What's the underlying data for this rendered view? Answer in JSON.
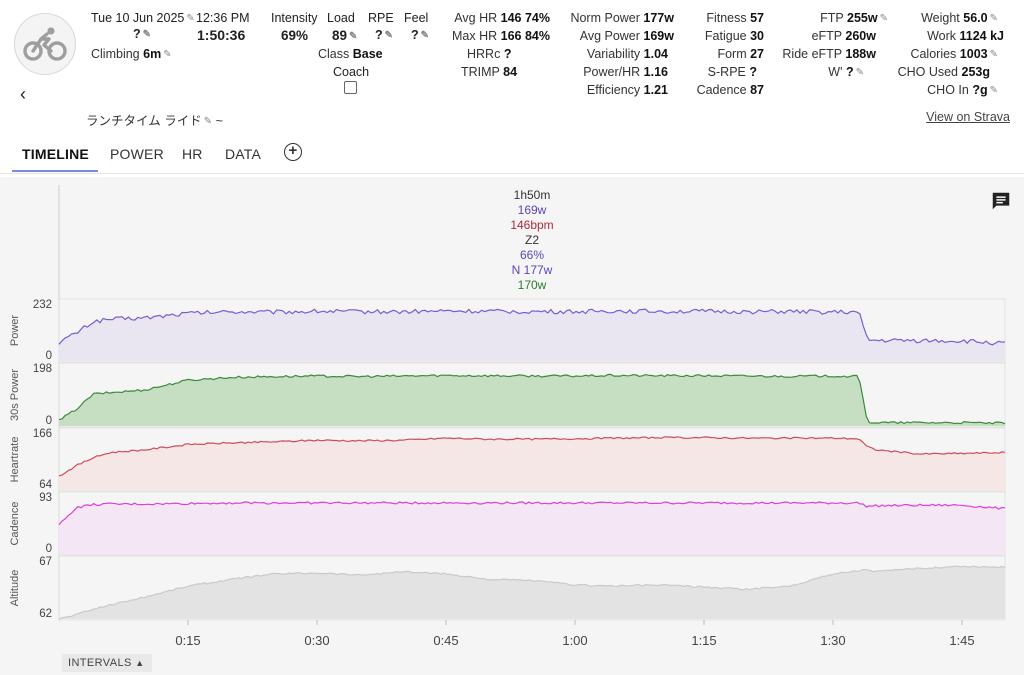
{
  "header": {
    "date": "Tue 10 Jun 2025",
    "time": "12:36 PM",
    "unknown_q": "?",
    "duration": "1:50:36",
    "climbing_label": "Climbing",
    "climbing_value": "6m",
    "title": "ランチタイム ライド",
    "title_suffix": "~",
    "strava_link": "View on Strava"
  },
  "metrics_a": {
    "intensity_label": "Intensity",
    "intensity_value": "69%",
    "load_label": "Load",
    "load_value": "89",
    "rpe_label": "RPE",
    "rpe_value": "?",
    "feel_label": "Feel",
    "feel_value": "?",
    "class_label": "Class",
    "class_value": "Base",
    "coach_label": "Coach"
  },
  "metrics_b": {
    "avg_hr_label": "Avg HR",
    "avg_hr_value": "146",
    "avg_hr_pct": "74%",
    "max_hr_label": "Max HR",
    "max_hr_value": "166",
    "max_hr_pct": "84%",
    "hrrc_label": "HRRc",
    "hrrc_value": "?",
    "trimp_label": "TRIMP",
    "trimp_value": "84"
  },
  "metrics_c": {
    "norm_power_label": "Norm Power",
    "norm_power_value": "177w",
    "avg_power_label": "Avg Power",
    "avg_power_value": "169w",
    "variability_label": "Variability",
    "variability_value": "1.04",
    "power_hr_label": "Power/HR",
    "power_hr_value": "1.16",
    "efficiency_label": "Efficiency",
    "efficiency_value": "1.21"
  },
  "metrics_d": {
    "fitness_label": "Fitness",
    "fitness_value": "57",
    "fatigue_label": "Fatigue",
    "fatigue_value": "30",
    "form_label": "Form",
    "form_value": "27",
    "srpe_label": "S-RPE",
    "srpe_value": "?",
    "cadence_label": "Cadence",
    "cadence_value": "87"
  },
  "metrics_e": {
    "ftp_label": "FTP",
    "ftp_value": "255w",
    "eftp_label": "eFTP",
    "eftp_value": "260w",
    "ride_eftp_label": "Ride eFTP",
    "ride_eftp_value": "188w",
    "wprime_label": "W'",
    "wprime_value": "?"
  },
  "metrics_f": {
    "weight_label": "Weight",
    "weight_value": "56.0",
    "work_label": "Work",
    "work_value": "1124 kJ",
    "calories_label": "Calories",
    "calories_value": "1003",
    "cho_used_label": "CHO Used",
    "cho_used_value": "253g",
    "cho_in_label": "CHO In",
    "cho_in_value": "?g"
  },
  "tabs": [
    "TIMELINE",
    "POWER",
    "HR",
    "DATA"
  ],
  "selection_summary": {
    "duration": "1h50m",
    "avg_power": "169w",
    "avg_hr": "146bpm",
    "zone": "Z2",
    "intensity": "66%",
    "norm_power": "N 177w",
    "power_30s": "170w"
  },
  "intervals_label": "INTERVALS",
  "colors": {
    "power": "#7a5cd1",
    "power_fill": "#e9e6f2",
    "p30_line": "#3c8a3c",
    "p30_fill": "#c6dfc2",
    "p30_above": "#f2d23c",
    "hr": "#cf4a5e",
    "hr_fill": "#f6e7e7",
    "cadence": "#dd3ed8",
    "cadence_fill": "#f4e6f4",
    "altitude": "#c9c9c9",
    "altitude_fill": "#e3e3e3",
    "summary_power": "#5b46b8",
    "summary_hr": "#b02a3e",
    "summary_30s": "#2e7a2e",
    "accent": "#7a89d8"
  },
  "chart_data": {
    "type": "line",
    "x_unit": "elapsed time (h:mm)",
    "x_range": [
      "0:00",
      "1:50"
    ],
    "x_ticks": [
      "0:15",
      "0:30",
      "0:45",
      "1:00",
      "1:15",
      "1:30",
      "1:45"
    ],
    "x_minutes": [
      0,
      2,
      4,
      6,
      10,
      15,
      20,
      25,
      30,
      35,
      40,
      45,
      50,
      55,
      60,
      65,
      70,
      75,
      80,
      85,
      90,
      93,
      94,
      95,
      100,
      105,
      110
    ],
    "series": [
      {
        "name": "Power",
        "y_ticks": [
          "0",
          "232"
        ],
        "ylim": [
          0,
          232
        ],
        "values": [
          80,
          120,
          170,
          180,
          185,
          205,
          212,
          210,
          214,
          212,
          212,
          215,
          213,
          212,
          212,
          215,
          214,
          213,
          212,
          212,
          210,
          210,
          90,
          88,
          88,
          86,
          75
        ]
      },
      {
        "name": "30s Power",
        "y_ticks": [
          "0",
          "198"
        ],
        "ylim": [
          0,
          198
        ],
        "values": [
          20,
          60,
          115,
          120,
          130,
          165,
          175,
          178,
          180,
          178,
          180,
          182,
          181,
          180,
          180,
          182,
          181,
          181,
          180,
          179,
          180,
          178,
          15,
          12,
          12,
          12,
          10
        ]
      },
      {
        "name": "Heartrate",
        "y_ticks": [
          "64",
          "166"
        ],
        "ylim": [
          64,
          166
        ],
        "values": [
          90,
          110,
          125,
          135,
          140,
          150,
          153,
          155,
          158,
          157,
          158,
          162,
          160,
          160,
          161,
          162,
          163,
          163,
          162,
          162,
          162,
          161,
          145,
          140,
          132,
          133,
          135
        ]
      },
      {
        "name": "Cadence",
        "y_ticks": [
          "0",
          "93"
        ],
        "ylim": [
          0,
          93
        ],
        "values": [
          50,
          80,
          85,
          86,
          86,
          87,
          88,
          88,
          88,
          88,
          88,
          88,
          88,
          88,
          88,
          88,
          88,
          88,
          88,
          88,
          88,
          88,
          82,
          83,
          84,
          84,
          78
        ]
      },
      {
        "name": "Altitude",
        "y_ticks": [
          "62",
          "67"
        ],
        "ylim": [
          62,
          67
        ],
        "values": [
          62.0,
          62.4,
          62.9,
          63.3,
          64.0,
          65.0,
          65.6,
          66.1,
          66.2,
          66.0,
          66.3,
          66.1,
          65.6,
          65.5,
          65.1,
          65.0,
          65.1,
          64.9,
          64.7,
          65.0,
          66.1,
          66.4,
          66.5,
          66.3,
          66.6,
          66.8,
          66.7
        ]
      }
    ]
  }
}
